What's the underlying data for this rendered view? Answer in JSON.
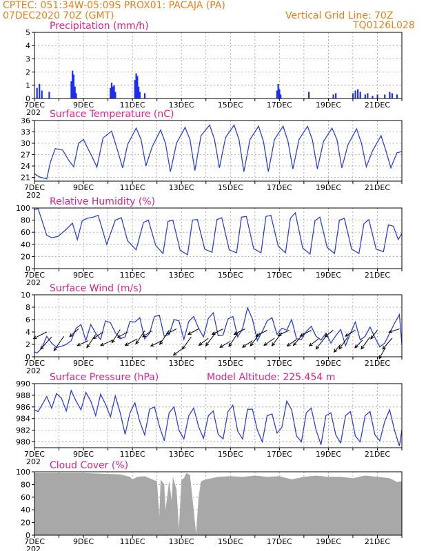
{
  "header": {
    "line1": "CPTEC:   051:34W-05:09S   PROX01: PACAJA (PA)",
    "line2": "07DEC2020 70Z (GMT)",
    "grid_note": "Vertical Grid Line: 70Z",
    "code": "TQ0126L028"
  },
  "colors": {
    "header": "#e8801a",
    "title": "#e0208a",
    "line": "#2b3fe0",
    "bar": "#1c2ff0",
    "cloud": "#a8a8a8",
    "grid": "#9a9a9a"
  },
  "x_axis": {
    "days": [
      7,
      22
    ],
    "tick_labels": [
      "7DEC",
      "9DEC",
      "11DEC",
      "13DEC",
      "15DEC",
      "17DEC",
      "19DEC",
      "21DEC"
    ],
    "tick_days": [
      7,
      9,
      11,
      13,
      15,
      17,
      19,
      21
    ],
    "clipped_label": "202"
  },
  "chart_data": [
    {
      "id": "precip",
      "type": "bar",
      "title": "Precipitation (mm/h)",
      "ylim": [
        0,
        5
      ],
      "yticks": [
        0,
        1,
        2,
        3,
        4,
        5
      ],
      "ytick_labels": [
        "0",
        "1",
        "2",
        "3",
        "4",
        "5"
      ],
      "x": [
        7.1,
        7.2,
        7.3,
        7.6,
        8.5,
        8.55,
        8.6,
        8.65,
        8.7,
        10.1,
        10.15,
        10.2,
        10.25,
        10.3,
        11.1,
        11.15,
        11.2,
        11.25,
        11.3,
        11.5,
        16.9,
        16.95,
        17.0,
        17.05,
        18.2,
        19.2,
        19.3,
        20.0,
        20.1,
        20.2,
        20.3,
        20.5,
        20.6,
        20.8,
        21.0,
        21.3,
        21.5,
        21.6,
        21.8
      ],
      "values": [
        0.8,
        1.1,
        0.6,
        0.5,
        1.3,
        2.1,
        1.8,
        0.9,
        0.4,
        0.8,
        1.2,
        0.9,
        1.0,
        0.5,
        1.4,
        1.9,
        1.7,
        0.9,
        0.5,
        0.4,
        0.6,
        1.1,
        0.7,
        0.3,
        0.5,
        0.3,
        0.4,
        0.4,
        0.6,
        0.7,
        0.5,
        0.3,
        0.4,
        0.2,
        0.3,
        0.3,
        0.5,
        0.4,
        0.3
      ]
    },
    {
      "id": "temp",
      "type": "line",
      "title": "Surface Temperature (nC)",
      "ylim": [
        20,
        36
      ],
      "yticks": [
        21,
        24,
        27,
        30,
        33,
        36
      ],
      "ytick_labels": [
        "21",
        "24",
        "27",
        "30",
        "33",
        "36"
      ],
      "x": [
        7,
        7.1,
        7.25,
        7.5,
        7.65,
        7.85,
        8.15,
        8.4,
        8.6,
        8.8,
        9.0,
        9.15,
        9.35,
        9.55,
        9.8,
        10.15,
        10.4,
        10.6,
        10.8,
        11.15,
        11.35,
        11.55,
        11.8,
        12.15,
        12.35,
        12.55,
        12.8,
        13.15,
        13.35,
        13.55,
        13.8,
        14.15,
        14.35,
        14.55,
        14.8,
        15.15,
        15.35,
        15.55,
        15.8,
        16.15,
        16.35,
        16.55,
        16.8,
        17.15,
        17.35,
        17.55,
        17.8,
        18.15,
        18.35,
        18.55,
        18.8,
        19.15,
        19.35,
        19.55,
        19.8,
        20.15,
        20.35,
        20.55,
        20.8,
        21.15,
        21.35,
        21.55,
        21.8,
        22.0
      ],
      "values": [
        22,
        21.5,
        21,
        20.6,
        25,
        28.6,
        28.2,
        25.5,
        23.8,
        30,
        31,
        29,
        26.5,
        23.7,
        31.4,
        33.2,
        28,
        23.5,
        29.6,
        34,
        31,
        24,
        29,
        33.5,
        30,
        22.5,
        30,
        34.2,
        31,
        22.8,
        32,
        34.8,
        31,
        23.5,
        31.5,
        34.8,
        31,
        22.5,
        31,
        34.5,
        30.5,
        22.5,
        31,
        34.5,
        30.5,
        23.2,
        31,
        34.5,
        30.8,
        23.2,
        30.5,
        34,
        31,
        23.5,
        29.6,
        33.8,
        30,
        23.8,
        28,
        32,
        28,
        23.5,
        27.5,
        27.8
      ]
    },
    {
      "id": "rh",
      "type": "line",
      "title": "Relative Humidity (%)",
      "ylim": [
        0,
        100
      ],
      "yticks": [
        0,
        20,
        40,
        60,
        80,
        100
      ],
      "ytick_labels": [
        "0",
        "20",
        "40",
        "60",
        "80",
        "100"
      ],
      "x": [
        7,
        7.15,
        7.3,
        7.5,
        7.7,
        7.95,
        8.25,
        8.55,
        8.75,
        8.95,
        9.15,
        9.4,
        9.6,
        9.95,
        10.3,
        10.55,
        10.8,
        11.15,
        11.45,
        11.65,
        11.95,
        12.25,
        12.45,
        12.65,
        12.95,
        13.25,
        13.45,
        13.65,
        13.95,
        14.25,
        14.45,
        14.65,
        14.95,
        15.25,
        15.45,
        15.65,
        15.95,
        16.25,
        16.45,
        16.65,
        16.95,
        17.25,
        17.45,
        17.65,
        17.95,
        18.25,
        18.45,
        18.65,
        18.95,
        19.25,
        19.45,
        19.65,
        19.95,
        20.25,
        20.45,
        20.65,
        20.95,
        21.25,
        21.45,
        21.65,
        21.85,
        22.0
      ],
      "values": [
        97,
        99,
        80,
        55,
        51,
        53,
        63,
        75,
        48,
        79,
        83,
        85,
        88,
        40,
        80,
        84,
        46,
        31,
        76,
        80,
        38,
        25,
        78,
        80,
        30,
        23,
        80,
        81,
        32,
        27,
        81,
        84,
        31,
        26,
        85,
        86,
        33,
        26,
        86,
        88,
        37,
        26,
        83,
        92,
        34,
        24,
        79,
        85,
        35,
        25,
        80,
        83,
        32,
        25,
        74,
        81,
        32,
        28,
        72,
        70,
        48,
        58
      ]
    },
    {
      "id": "wind",
      "type": "line",
      "title": "Surface Wind (m/s)",
      "ylim": [
        0,
        10
      ],
      "yticks": [
        0,
        2,
        4,
        6,
        8,
        10
      ],
      "ytick_labels": [
        "0",
        "2",
        "4",
        "6",
        "8",
        "10"
      ],
      "x": [
        7,
        7.1,
        7.3,
        7.5,
        7.7,
        7.9,
        8.1,
        8.3,
        8.5,
        8.7,
        8.9,
        9.1,
        9.3,
        9.5,
        9.7,
        9.9,
        10.1,
        10.3,
        10.5,
        10.7,
        10.9,
        11.1,
        11.3,
        11.5,
        11.7,
        11.9,
        12.1,
        12.3,
        12.5,
        12.7,
        12.9,
        13.1,
        13.3,
        13.5,
        13.7,
        13.9,
        14.1,
        14.3,
        14.5,
        14.7,
        14.9,
        15.1,
        15.3,
        15.5,
        15.7,
        15.9,
        16.1,
        16.3,
        16.5,
        16.7,
        16.9,
        17.1,
        17.3,
        17.5,
        17.7,
        17.9,
        18.1,
        18.3,
        18.5,
        18.7,
        18.9,
        19.1,
        19.3,
        19.5,
        19.7,
        19.9,
        20.1,
        20.3,
        20.5,
        20.7,
        20.9,
        21.1,
        21.3,
        21.5,
        21.7,
        21.9,
        22.0
      ],
      "values": [
        0.8,
        0.6,
        1.4,
        3.3,
        2.2,
        1.5,
        1.7,
        2.0,
        2.6,
        4.6,
        5.2,
        2.6,
        5.2,
        3.8,
        2.8,
        5.8,
        5.5,
        3.9,
        2.9,
        3.2,
        5.7,
        5.6,
        6.3,
        2.9,
        3.8,
        6.5,
        6.7,
        3.3,
        3.6,
        6.0,
        5.8,
        2.8,
        5.7,
        6.5,
        4.6,
        3.2,
        6.2,
        7.1,
        3.4,
        3.5,
        6.1,
        6.5,
        3.2,
        4.6,
        7.9,
        6.1,
        2.6,
        4.1,
        5.8,
        6.3,
        3.6,
        4.6,
        4.3,
        6.0,
        2.9,
        2.8,
        4.1,
        4.9,
        3.3,
        2.7,
        3.8,
        2.2,
        3.4,
        4.4,
        1.8,
        3.8,
        5.6,
        2.7,
        3.3,
        4.8,
        3.1,
        1.6,
        2.2,
        3.8,
        5.4,
        6.8,
        2.0
      ]
    },
    {
      "id": "pres",
      "type": "line",
      "title": "Surface Pressure (hPa)",
      "extra_label": "Model Altitude: 225.454  m",
      "ylim": [
        979,
        990
      ],
      "yticks": [
        980,
        982,
        984,
        986,
        988,
        990
      ],
      "ytick_labels": [
        "980",
        "982",
        "984",
        "986",
        "988",
        "990"
      ],
      "x": [
        7,
        7.15,
        7.3,
        7.5,
        7.7,
        7.9,
        8.1,
        8.3,
        8.5,
        8.7,
        8.9,
        9.1,
        9.3,
        9.5,
        9.7,
        9.9,
        10.1,
        10.3,
        10.5,
        10.7,
        10.9,
        11.1,
        11.3,
        11.5,
        11.7,
        11.9,
        12.1,
        12.3,
        12.5,
        12.7,
        12.9,
        13.1,
        13.3,
        13.5,
        13.7,
        13.9,
        14.1,
        14.3,
        14.5,
        14.7,
        14.9,
        15.1,
        15.3,
        15.5,
        15.7,
        15.9,
        16.1,
        16.3,
        16.5,
        16.7,
        16.9,
        17.1,
        17.3,
        17.5,
        17.7,
        17.9,
        18.1,
        18.3,
        18.5,
        18.7,
        18.9,
        19.1,
        19.3,
        19.5,
        19.7,
        19.9,
        20.1,
        20.3,
        20.5,
        20.7,
        20.9,
        21.1,
        21.3,
        21.5,
        21.7,
        21.9,
        22.0
      ],
      "values": [
        985.5,
        985.2,
        986.3,
        987.8,
        985.8,
        988.3,
        987.5,
        985.3,
        988.8,
        987.0,
        985.5,
        988.5,
        987.0,
        984.5,
        988.2,
        986.5,
        984.3,
        987.9,
        985.0,
        981.3,
        985.0,
        986.7,
        983.5,
        981.2,
        985.6,
        986.0,
        982.7,
        980.2,
        985.0,
        986.0,
        982.0,
        980.5,
        984.5,
        985.8,
        982.6,
        980.6,
        984.5,
        985.3,
        981.3,
        980.5,
        985.2,
        986.3,
        981.8,
        980.5,
        985.6,
        985.6,
        982.0,
        980.0,
        984.5,
        984.8,
        981.5,
        982.5,
        987.0,
        985.5,
        981.0,
        980.0,
        985.0,
        985.8,
        982.0,
        979.5,
        984.5,
        985.0,
        981.2,
        979.8,
        984.5,
        985.2,
        981.0,
        980.0,
        984.5,
        985.2,
        981.2,
        980.2,
        983.5,
        985.5,
        982.0,
        979.3,
        982.0
      ]
    },
    {
      "id": "cloud",
      "type": "area",
      "title": "Cloud Cover (%)",
      "ylim": [
        0,
        100
      ],
      "yticks": [
        0,
        20,
        40,
        60,
        80,
        100
      ],
      "ytick_labels": [
        "0",
        "20",
        "40",
        "60",
        "80",
        "100"
      ],
      "x": [
        7,
        9.0,
        10.5,
        10.9,
        11.0,
        11.2,
        11.5,
        12.0,
        12.1,
        12.15,
        12.3,
        12.35,
        12.5,
        12.6,
        12.65,
        12.8,
        12.9,
        13.0,
        13.1,
        13.2,
        13.35,
        13.5,
        13.6,
        13.7,
        13.8,
        14.0,
        14.5,
        15.0,
        15.5,
        16.0,
        16.5,
        17.0,
        17.5,
        18.0,
        18.5,
        19.0,
        19.5,
        20.0,
        20.5,
        21.0,
        21.5,
        21.8,
        22.0
      ],
      "values": [
        98,
        98,
        96,
        92,
        88,
        92,
        93,
        85,
        30,
        88,
        80,
        40,
        86,
        55,
        92,
        72,
        10,
        87,
        90,
        98,
        95,
        40,
        2,
        60,
        85,
        88,
        92,
        93,
        92,
        94,
        92,
        93,
        88,
        92,
        94,
        92,
        92,
        90,
        94,
        92,
        90,
        84,
        85
      ]
    }
  ],
  "wind_arrows": {
    "x": [
      7.5,
      7.7,
      8.2,
      8.8,
      9.2,
      9.5,
      9.8,
      10.2,
      10.5,
      10.8,
      11.2,
      11.5,
      11.8,
      12.2,
      12.5,
      12.8,
      13.1,
      13.4,
      13.7,
      14.1,
      14.4,
      14.7,
      15.0,
      15.3,
      15.6,
      15.9,
      16.2,
      16.5,
      16.8,
      17.1,
      17.4,
      17.7,
      18.0,
      18.3,
      18.6,
      18.9,
      19.2,
      19.5,
      19.8,
      20.1,
      20.4,
      20.7,
      21.0,
      21.3,
      21.6,
      21.9
    ],
    "level": [
      4.0,
      3.2,
      3.3,
      4.5,
      2.6,
      3.6,
      4.0,
      2.7,
      4.4,
      4.0,
      2.9,
      4.2,
      4.2,
      2.6,
      4.3,
      4.5,
      1.5,
      3.2,
      4.5,
      3.0,
      3.9,
      4.5,
      2.5,
      3.8,
      4.5,
      2.6,
      3.8,
      4.3,
      3.0,
      3.9,
      4.3,
      2.8,
      3.8,
      4.3,
      2.9,
      3.3,
      4.3,
      2.0,
      3.2,
      4.3,
      2.7,
      3.2,
      4.3,
      1.3,
      3.0,
      4.5
    ],
    "u": [
      -2.4,
      -2.0,
      -1.8,
      -1.6,
      -2.0,
      -1.6,
      -1.8,
      -2.2,
      -1.5,
      -1.8,
      -2.2,
      -1.6,
      -1.7,
      -2.0,
      -1.7,
      -1.8,
      -1.9,
      -1.6,
      -1.9,
      -1.7,
      -1.8,
      -2.0,
      -1.9,
      -1.6,
      -2.0,
      -1.8,
      -1.7,
      -2.0,
      -1.9,
      -1.8,
      -2.0,
      -1.7,
      -1.9,
      -2.0,
      -1.7,
      -1.8,
      -1.5,
      -1.2,
      -1.6,
      -1.8,
      -1.4,
      -1.6,
      -1.2,
      -1.0,
      -1.7,
      -1.9
    ],
    "v": [
      -1.2,
      -2.2,
      -2.6,
      -1.4,
      -0.9,
      -2.4,
      -1.2,
      -1.0,
      -2.4,
      -1.0,
      -1.2,
      -2.4,
      -1.1,
      -1.0,
      -2.6,
      -0.9,
      -1.4,
      -2.2,
      -1.0,
      -1.3,
      -2.4,
      -1.0,
      -1.1,
      -2.4,
      -1.0,
      -1.2,
      -2.3,
      -1.1,
      -1.3,
      -2.4,
      -1.0,
      -1.2,
      -2.2,
      -1.1,
      -1.3,
      -2.3,
      -1.2,
      -1.4,
      -2.2,
      -1.1,
      -1.4,
      -2.2,
      -1.6,
      -1.8,
      -2.0,
      -0.6
    ]
  }
}
